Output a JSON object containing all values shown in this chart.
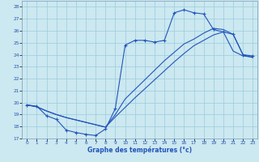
{
  "xlabel": "Graphe des températures (°c)",
  "xlim": [
    -0.5,
    23.5
  ],
  "ylim": [
    17,
    28.5
  ],
  "xticks": [
    0,
    1,
    2,
    3,
    4,
    5,
    6,
    7,
    8,
    9,
    10,
    11,
    12,
    13,
    14,
    15,
    16,
    17,
    18,
    19,
    20,
    21,
    22,
    23
  ],
  "yticks": [
    17,
    18,
    19,
    20,
    21,
    22,
    23,
    24,
    25,
    26,
    27,
    28
  ],
  "bg_color": "#cce8f0",
  "line_color": "#2255bb",
  "grid_color": "#99ccdd",
  "line1_x": [
    0,
    1,
    2,
    3,
    4,
    5,
    6,
    7,
    8,
    9,
    10,
    11,
    12,
    13,
    14,
    15,
    16,
    17,
    18,
    19,
    20,
    21,
    22,
    23
  ],
  "line1_y": [
    19.8,
    19.7,
    18.9,
    18.6,
    17.7,
    17.5,
    17.35,
    17.25,
    17.8,
    19.5,
    24.8,
    25.2,
    25.2,
    25.05,
    25.2,
    27.5,
    27.75,
    27.5,
    27.4,
    26.1,
    25.9,
    25.7,
    24.0,
    23.9
  ],
  "line2_x": [
    0,
    1,
    2,
    3,
    4,
    5,
    6,
    7,
    8,
    9,
    10,
    11,
    12,
    13,
    14,
    15,
    16,
    17,
    18,
    19,
    20,
    21,
    22,
    23
  ],
  "line2_y": [
    19.8,
    19.65,
    19.3,
    19.0,
    18.75,
    18.55,
    18.35,
    18.15,
    17.95,
    18.8,
    19.6,
    20.4,
    21.15,
    21.9,
    22.65,
    23.4,
    24.1,
    24.75,
    25.2,
    25.65,
    25.9,
    24.3,
    23.9,
    23.8
  ],
  "line3_x": [
    0,
    1,
    2,
    3,
    4,
    5,
    6,
    7,
    8,
    9,
    10,
    11,
    12,
    13,
    14,
    15,
    16,
    17,
    18,
    19,
    20,
    21,
    22,
    23
  ],
  "line3_y": [
    19.8,
    19.65,
    19.3,
    19.0,
    18.75,
    18.55,
    18.35,
    18.15,
    17.95,
    19.0,
    20.3,
    21.1,
    21.9,
    22.7,
    23.5,
    24.2,
    24.9,
    25.3,
    25.8,
    26.2,
    26.1,
    25.7,
    24.0,
    23.75
  ]
}
